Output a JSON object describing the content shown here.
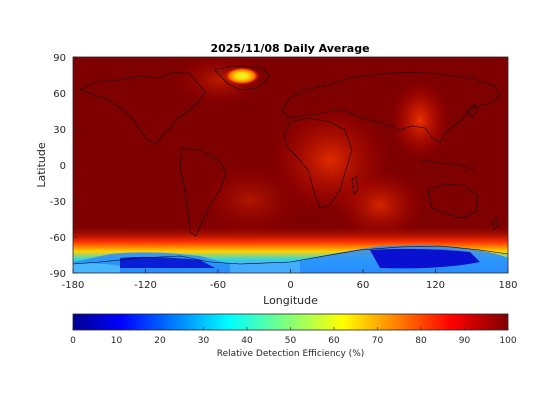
{
  "map": {
    "title": "2025/11/08 Daily Average",
    "xlabel": "Longitude",
    "ylabel": "Latitude",
    "xticks": [
      "-180",
      "-120",
      "-60",
      "0",
      "60",
      "120",
      "180"
    ],
    "yticks": [
      "90",
      "60",
      "30",
      "0",
      "-30",
      "-60",
      "-90"
    ],
    "xlim": [
      -180,
      180
    ],
    "ylim": [
      -90,
      90
    ],
    "projection": "equirectangular",
    "colormap": "jet"
  },
  "colorbar": {
    "label": "Relative Detection Efficiency (%)",
    "ticks": [
      "0",
      "10",
      "20",
      "30",
      "40",
      "50",
      "60",
      "70",
      "80",
      "90",
      "100"
    ],
    "range": [
      0,
      100
    ]
  },
  "colors": {
    "background_high": "#7f0000",
    "mid_red": "#e01000",
    "orange": "#ff7a00",
    "yellow": "#ffe000",
    "cyan": "#30e0e0",
    "light_blue": "#40a0ff",
    "deep_blue": "#0000c8",
    "coastline": "#000000"
  }
}
